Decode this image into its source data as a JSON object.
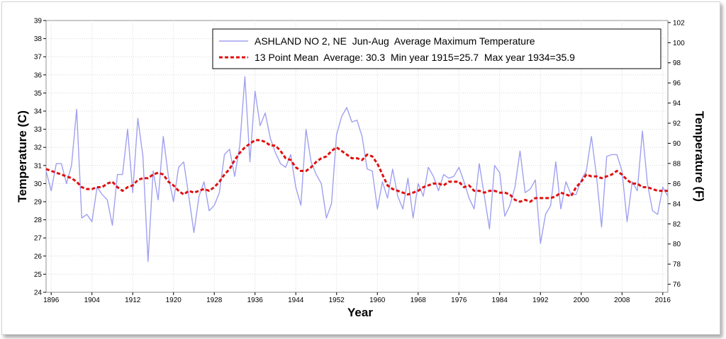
{
  "chart_data": {
    "type": "line",
    "xlabel": "Year",
    "ylabel_left": "Temperature (C)",
    "ylabel_right": "Temperature (F)",
    "xlim": [
      1895,
      2017
    ],
    "ylim_left": [
      24,
      39
    ],
    "ylim_right": [
      75.2,
      102.2
    ],
    "x_ticks": [
      1896,
      1904,
      1912,
      1920,
      1928,
      1936,
      1944,
      1952,
      1960,
      1968,
      1976,
      1984,
      1992,
      2000,
      2008,
      2016
    ],
    "y_ticks_left": [
      24,
      25,
      26,
      27,
      28,
      29,
      30,
      31,
      32,
      33,
      34,
      35,
      36,
      37,
      38,
      39
    ],
    "y_ticks_right": [
      76,
      78,
      80,
      82,
      84,
      86,
      88,
      90,
      92,
      94,
      96,
      98,
      100,
      102
    ],
    "grid": true,
    "legend_position": "top-right",
    "series": [
      {
        "name": "ASHLAND NO 2, NE  Jun-Aug  Average Maximum Temperature",
        "style": "solid",
        "color": "#a0a0f0",
        "x": [
          1895,
          1896,
          1897,
          1898,
          1899,
          1900,
          1901,
          1902,
          1903,
          1904,
          1905,
          1906,
          1907,
          1908,
          1909,
          1910,
          1911,
          1912,
          1913,
          1914,
          1915,
          1916,
          1917,
          1918,
          1919,
          1920,
          1921,
          1922,
          1923,
          1924,
          1925,
          1926,
          1927,
          1928,
          1929,
          1930,
          1931,
          1932,
          1933,
          1934,
          1935,
          1936,
          1937,
          1938,
          1939,
          1940,
          1941,
          1942,
          1943,
          1944,
          1945,
          1946,
          1947,
          1948,
          1949,
          1950,
          1951,
          1952,
          1953,
          1954,
          1955,
          1956,
          1957,
          1958,
          1959,
          1960,
          1961,
          1962,
          1963,
          1964,
          1965,
          1966,
          1967,
          1968,
          1969,
          1970,
          1971,
          1972,
          1973,
          1974,
          1975,
          1976,
          1977,
          1978,
          1979,
          1980,
          1981,
          1982,
          1983,
          1984,
          1985,
          1986,
          1987,
          1988,
          1989,
          1990,
          1991,
          1992,
          1993,
          1994,
          1995,
          1996,
          1997,
          1998,
          1999,
          2000,
          2001,
          2002,
          2003,
          2004,
          2005,
          2006,
          2007,
          2008,
          2009,
          2010,
          2011,
          2012,
          2013,
          2014,
          2015,
          2016,
          2017
        ],
        "values": [
          30.7,
          29.6,
          31.1,
          31.1,
          30.0,
          31.0,
          34.1,
          28.1,
          28.3,
          27.9,
          29.8,
          29.4,
          29.1,
          27.7,
          30.5,
          30.5,
          33.0,
          29.5,
          33.6,
          31.5,
          25.7,
          30.7,
          29.1,
          32.6,
          30.4,
          29.0,
          30.9,
          31.2,
          29.3,
          27.3,
          29.3,
          30.1,
          28.5,
          28.8,
          29.5,
          31.6,
          31.9,
          30.4,
          32.1,
          35.9,
          31.2,
          35.1,
          33.2,
          33.9,
          32.5,
          31.7,
          31.1,
          30.9,
          31.6,
          29.8,
          28.8,
          33.0,
          31.2,
          30.5,
          30.0,
          28.1,
          28.9,
          32.7,
          33.7,
          34.2,
          33.4,
          33.5,
          32.6,
          30.8,
          30.7,
          28.6,
          30.1,
          29.2,
          30.8,
          29.3,
          28.6,
          30.3,
          28.1,
          30.0,
          29.3,
          30.9,
          30.4,
          29.6,
          30.5,
          30.3,
          30.4,
          30.9,
          30.1,
          29.2,
          28.6,
          31.1,
          29.3,
          27.5,
          31.0,
          30.6,
          28.2,
          28.8,
          29.8,
          31.8,
          29.5,
          29.7,
          30.2,
          26.7,
          28.3,
          28.8,
          31.2,
          28.6,
          30.1,
          29.4,
          29.4,
          30.2,
          30.7,
          32.6,
          30.4,
          27.6,
          31.5,
          31.6,
          31.6,
          30.7,
          27.9,
          30.1,
          29.6,
          32.9,
          30.0,
          28.5,
          28.3,
          29.8,
          29.3
        ]
      },
      {
        "name": "13 Point Mean  Average: 30.3  Min year 1915=25.7  Max year 1934=35.9",
        "style": "dashed",
        "color": "#e01010",
        "x": [
          1895,
          1896,
          1897,
          1898,
          1899,
          1900,
          1901,
          1902,
          1903,
          1904,
          1905,
          1906,
          1907,
          1908,
          1909,
          1910,
          1911,
          1912,
          1913,
          1914,
          1915,
          1916,
          1917,
          1918,
          1919,
          1920,
          1921,
          1922,
          1923,
          1924,
          1925,
          1926,
          1927,
          1928,
          1929,
          1930,
          1931,
          1932,
          1933,
          1934,
          1935,
          1936,
          1937,
          1938,
          1939,
          1940,
          1941,
          1942,
          1943,
          1944,
          1945,
          1946,
          1947,
          1948,
          1949,
          1950,
          1951,
          1952,
          1953,
          1954,
          1955,
          1956,
          1957,
          1958,
          1959,
          1960,
          1961,
          1962,
          1963,
          1964,
          1965,
          1966,
          1967,
          1968,
          1969,
          1970,
          1971,
          1972,
          1973,
          1974,
          1975,
          1976,
          1977,
          1978,
          1979,
          1980,
          1981,
          1982,
          1983,
          1984,
          1985,
          1986,
          1987,
          1988,
          1989,
          1990,
          1991,
          1992,
          1993,
          1994,
          1995,
          1996,
          1997,
          1998,
          1999,
          2000,
          2001,
          2002,
          2003,
          2004,
          2005,
          2006,
          2007,
          2008,
          2009,
          2010,
          2011,
          2012,
          2013,
          2014,
          2015,
          2016,
          2017
        ],
        "values": [
          30.8,
          30.7,
          30.6,
          30.5,
          30.4,
          30.3,
          30.1,
          29.8,
          29.7,
          29.7,
          29.8,
          29.8,
          30.0,
          30.1,
          29.8,
          29.6,
          29.8,
          29.9,
          30.2,
          30.3,
          30.3,
          30.5,
          30.6,
          30.5,
          30.1,
          29.9,
          29.6,
          29.4,
          29.6,
          29.5,
          29.6,
          29.7,
          29.6,
          29.8,
          30.1,
          30.5,
          30.8,
          31.3,
          31.7,
          32.0,
          32.2,
          32.4,
          32.4,
          32.3,
          32.1,
          32.1,
          31.8,
          31.4,
          31.3,
          30.9,
          30.7,
          30.7,
          30.9,
          31.2,
          31.4,
          31.5,
          31.8,
          32.0,
          31.8,
          31.6,
          31.4,
          31.4,
          31.3,
          31.6,
          31.5,
          31.1,
          30.5,
          29.9,
          29.7,
          29.6,
          29.5,
          29.4,
          29.5,
          29.6,
          29.8,
          29.9,
          30.0,
          30.0,
          29.9,
          30.1,
          30.1,
          30.1,
          29.8,
          29.9,
          29.6,
          29.6,
          29.5,
          29.6,
          29.6,
          29.5,
          29.5,
          29.4,
          29.1,
          29.0,
          29.1,
          29.0,
          29.2,
          29.2,
          29.2,
          29.2,
          29.3,
          29.5,
          29.4,
          29.3,
          29.8,
          30.1,
          30.5,
          30.4,
          30.4,
          30.3,
          30.4,
          30.5,
          30.7,
          30.5,
          30.2,
          30.0,
          30.0,
          29.8,
          29.8,
          29.7,
          29.6,
          29.6,
          29.6
        ]
      }
    ]
  }
}
